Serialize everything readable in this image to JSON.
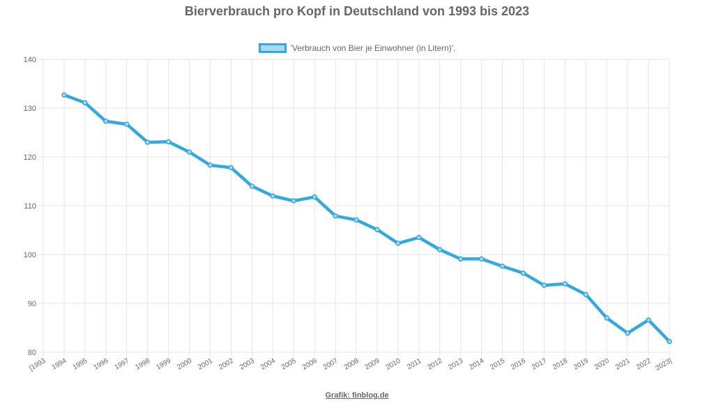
{
  "chart_data": {
    "type": "line",
    "title": "Bierverbrauch pro Kopf in Deutschland von 1993 bis 2023",
    "legend": {
      "label": "'Verbrauch von Bier je Einwohner (in Litern)',",
      "placement": "top-center"
    },
    "categories": [
      "[1993",
      "1994",
      "1995",
      "1996",
      "1997",
      "1998",
      "1999",
      "2000",
      "2001",
      "2002",
      "2003",
      "2004",
      "2005",
      "2006",
      "2007",
      "2008",
      "2009",
      "2010",
      "2011",
      "2012",
      "2013",
      "2014",
      "2015",
      "2016",
      "2017",
      "2018",
      "2019",
      "2020",
      "2021",
      "2022",
      "2023]"
    ],
    "values": [
      null,
      132.7,
      131.1,
      127.3,
      126.7,
      123.0,
      123.1,
      121.0,
      118.3,
      117.8,
      114.0,
      112.0,
      111.0,
      111.8,
      107.9,
      107.1,
      105.1,
      102.3,
      103.5,
      101.0,
      99.1,
      99.1,
      97.6,
      96.2,
      93.7,
      94.0,
      91.8,
      87.0,
      83.9,
      86.6,
      82.2
    ],
    "ylim": [
      80,
      140
    ],
    "yticks": [
      80,
      90,
      100,
      110,
      120,
      130,
      140
    ],
    "grid": true,
    "line_color": "#33a9e0"
  },
  "footer": {
    "credit": "Grafik: finblog.de"
  }
}
